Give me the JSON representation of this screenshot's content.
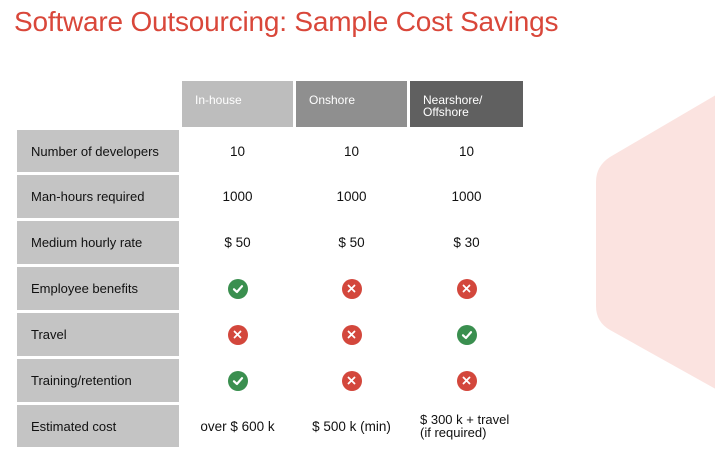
{
  "slide": {
    "title": "Software Outsourcing: Sample Cost Savings"
  },
  "table": {
    "columns": [
      "In-house",
      "Onshore",
      "Nearshore/\nOffshore"
    ],
    "rows": [
      {
        "label": "Number of developers",
        "values": [
          "10",
          "10",
          "10"
        ]
      },
      {
        "label": "Man-hours required",
        "values": [
          "1000",
          "1000",
          "1000"
        ]
      },
      {
        "label": "Medium hourly rate",
        "values": [
          "$ 50",
          "$ 50",
          "$ 30"
        ]
      },
      {
        "label": "Employee benefits",
        "icons": [
          "check-icon",
          "cross-icon",
          "cross-icon"
        ]
      },
      {
        "label": "Travel",
        "icons": [
          "cross-icon",
          "cross-icon",
          "check-icon"
        ]
      },
      {
        "label": "Training/retention",
        "icons": [
          "check-icon",
          "cross-icon",
          "cross-icon"
        ]
      },
      {
        "label": "Estimated cost",
        "values": [
          "over $ 600 k",
          "$ 500 k (min)",
          "$ 300 k + travel\n(if required)"
        ]
      }
    ]
  },
  "colors": {
    "title": "#d9473a",
    "check": "#3a8f4f",
    "cross": "#d3473c",
    "decor": "#fbe3e0"
  }
}
